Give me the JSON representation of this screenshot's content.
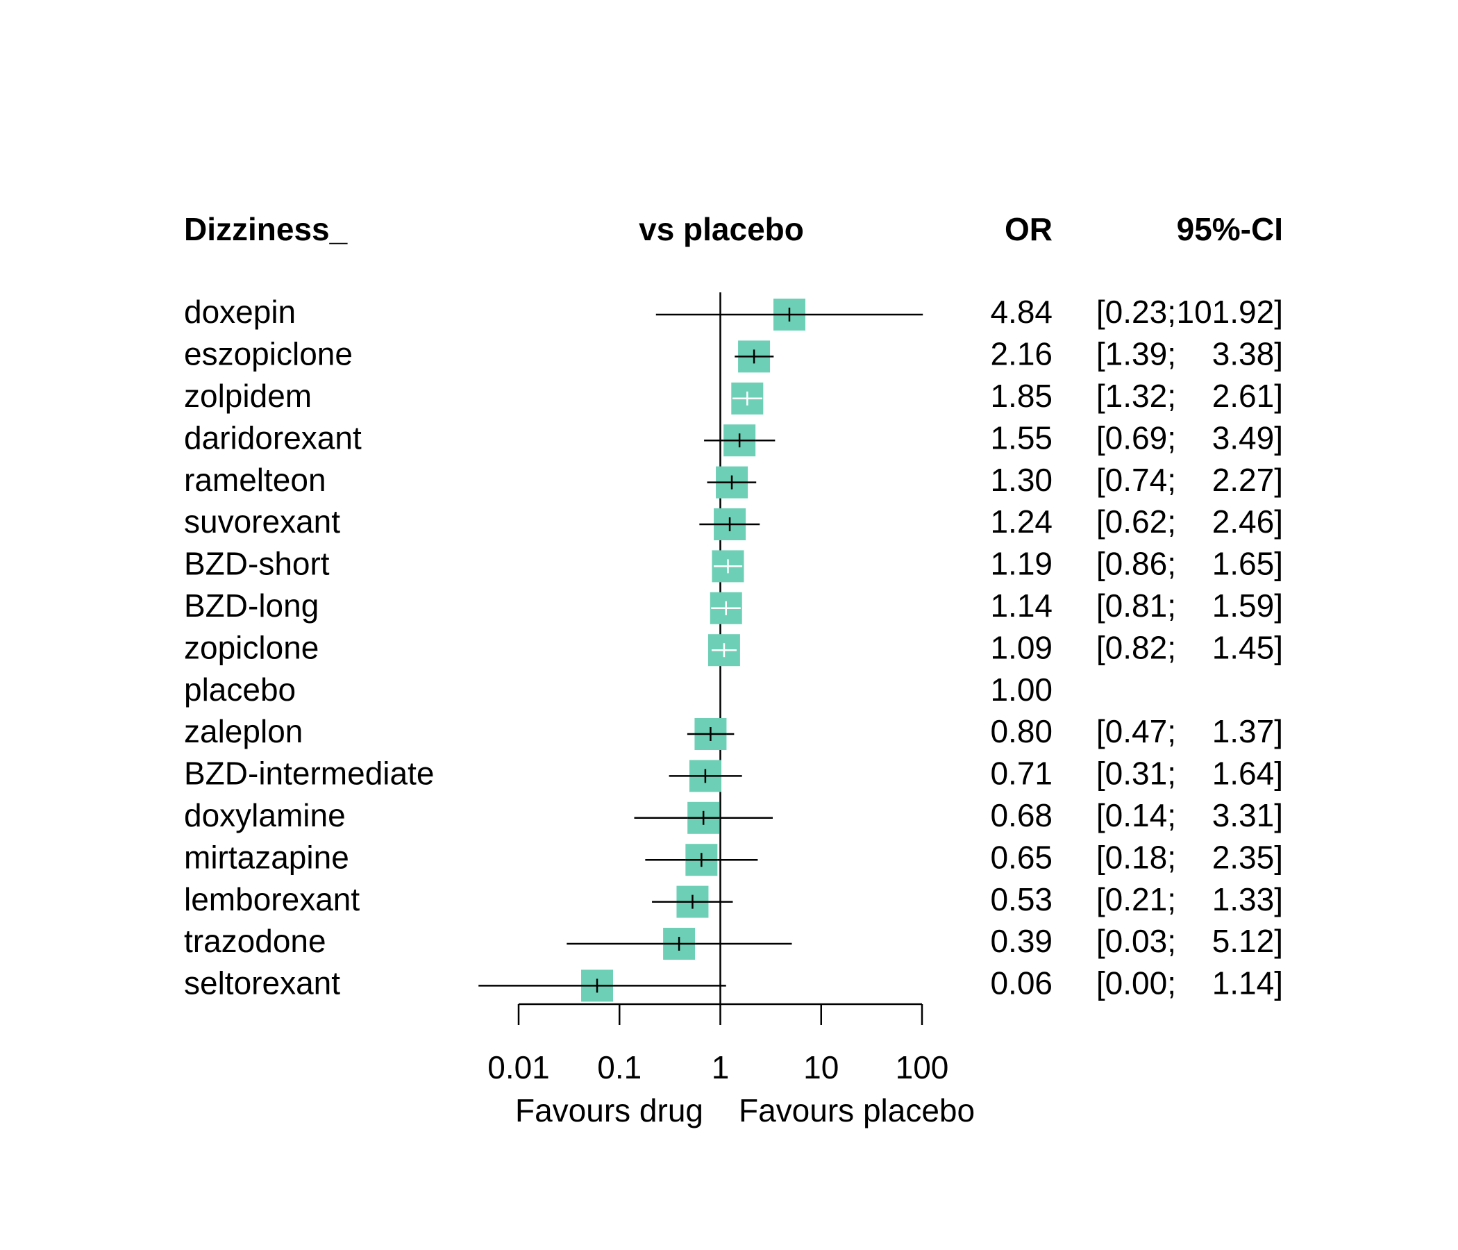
{
  "chart_data": {
    "type": "forest",
    "headers": {
      "label": "Dizziness_",
      "plot": "vs placebo",
      "estimate": "OR",
      "ci": "95%-CI"
    },
    "x_scale": "log",
    "xlim": [
      0.01,
      100
    ],
    "reference_line": 1,
    "x_ticks": [
      {
        "value": 0.01,
        "label": "0.01"
      },
      {
        "value": 0.1,
        "label": "0.1"
      },
      {
        "value": 1,
        "label": "1"
      },
      {
        "value": 10,
        "label": "10"
      },
      {
        "value": 100,
        "label": "100"
      }
    ],
    "xlabel_left": "Favours drug",
    "xlabel_right": "Favours placebo",
    "colors": {
      "box": "#6dd0b6",
      "line": "#000000"
    },
    "rows": [
      {
        "name": "doxepin",
        "or": 4.84,
        "lower": 0.23,
        "upper": 101.92,
        "or_text": "4.84",
        "ci_left": "[0.23;",
        "ci_right": "101.92]"
      },
      {
        "name": "eszopiclone",
        "or": 2.16,
        "lower": 1.39,
        "upper": 3.38,
        "or_text": "2.16",
        "ci_left": "[1.39;",
        "ci_right": "3.38]"
      },
      {
        "name": "zolpidem",
        "or": 1.85,
        "lower": 1.32,
        "upper": 2.61,
        "or_text": "1.85",
        "ci_left": "[1.32;",
        "ci_right": "2.61]"
      },
      {
        "name": "daridorexant",
        "or": 1.55,
        "lower": 0.69,
        "upper": 3.49,
        "or_text": "1.55",
        "ci_left": "[0.69;",
        "ci_right": "3.49]"
      },
      {
        "name": "ramelteon",
        "or": 1.3,
        "lower": 0.74,
        "upper": 2.27,
        "or_text": "1.30",
        "ci_left": "[0.74;",
        "ci_right": "2.27]"
      },
      {
        "name": "suvorexant",
        "or": 1.24,
        "lower": 0.62,
        "upper": 2.46,
        "or_text": "1.24",
        "ci_left": "[0.62;",
        "ci_right": "2.46]"
      },
      {
        "name": "BZD-short",
        "or": 1.19,
        "lower": 0.86,
        "upper": 1.65,
        "or_text": "1.19",
        "ci_left": "[0.86;",
        "ci_right": "1.65]"
      },
      {
        "name": "BZD-long",
        "or": 1.14,
        "lower": 0.81,
        "upper": 1.59,
        "or_text": "1.14",
        "ci_left": "[0.81;",
        "ci_right": "1.59]"
      },
      {
        "name": "zopiclone",
        "or": 1.09,
        "lower": 0.82,
        "upper": 1.45,
        "or_text": "1.09",
        "ci_left": "[0.82;",
        "ci_right": "1.45]"
      },
      {
        "name": "placebo",
        "or": 1.0,
        "lower": null,
        "upper": null,
        "or_text": "1.00",
        "ci_left": "",
        "ci_right": ""
      },
      {
        "name": "zaleplon",
        "or": 0.8,
        "lower": 0.47,
        "upper": 1.37,
        "or_text": "0.80",
        "ci_left": "[0.47;",
        "ci_right": "1.37]"
      },
      {
        "name": "BZD-intermediate",
        "or": 0.71,
        "lower": 0.31,
        "upper": 1.64,
        "or_text": "0.71",
        "ci_left": "[0.31;",
        "ci_right": "1.64]"
      },
      {
        "name": "doxylamine",
        "or": 0.68,
        "lower": 0.14,
        "upper": 3.31,
        "or_text": "0.68",
        "ci_left": "[0.14;",
        "ci_right": "3.31]"
      },
      {
        "name": "mirtazapine",
        "or": 0.65,
        "lower": 0.18,
        "upper": 2.35,
        "or_text": "0.65",
        "ci_left": "[0.18;",
        "ci_right": "2.35]"
      },
      {
        "name": "lemborexant",
        "or": 0.53,
        "lower": 0.21,
        "upper": 1.33,
        "or_text": "0.53",
        "ci_left": "[0.21;",
        "ci_right": "1.33]"
      },
      {
        "name": "trazodone",
        "or": 0.39,
        "lower": 0.03,
        "upper": 5.12,
        "or_text": "0.39",
        "ci_left": "[0.03;",
        "ci_right": "5.12]"
      },
      {
        "name": "seltorexant",
        "or": 0.06,
        "lower": 0.0,
        "upper": 1.14,
        "or_text": "0.06",
        "ci_left": "[0.00;",
        "ci_right": "1.14]"
      }
    ]
  }
}
